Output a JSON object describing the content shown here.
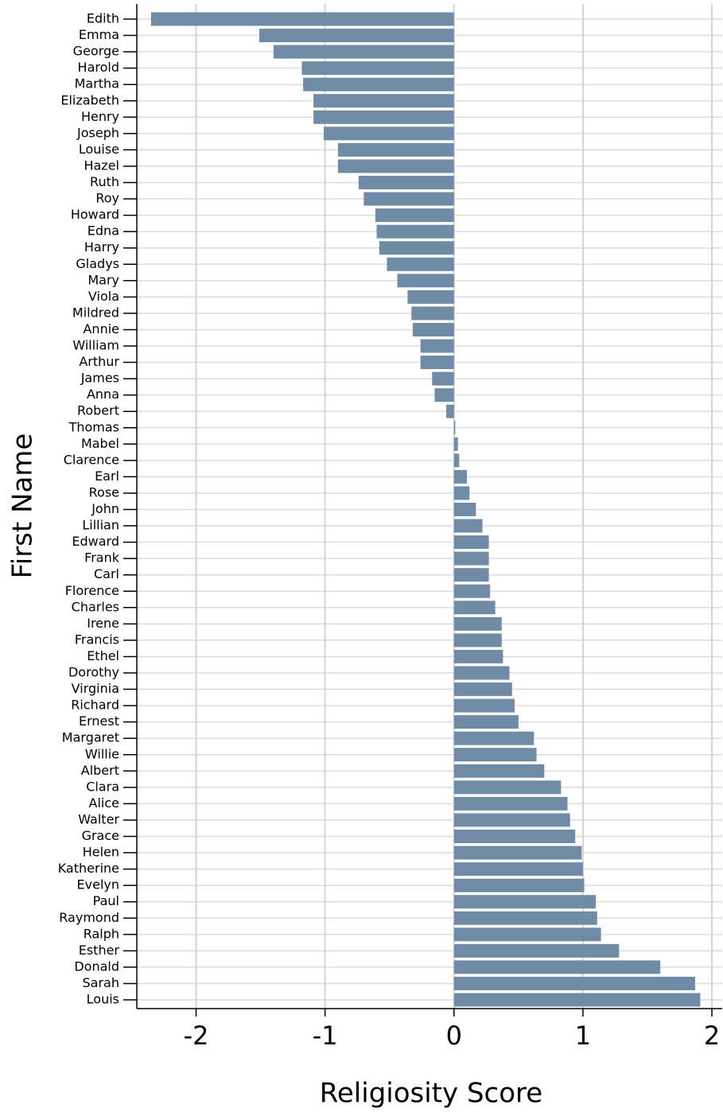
{
  "chart_data": {
    "type": "barh",
    "x_label": "Religiosity Score",
    "y_label": "First Name",
    "categories": [
      "Edith",
      "Emma",
      "George",
      "Harold",
      "Martha",
      "Elizabeth",
      "Henry",
      "Joseph",
      "Louise",
      "Hazel",
      "Ruth",
      "Roy",
      "Howard",
      "Edna",
      "Harry",
      "Gladys",
      "Mary",
      "Viola",
      "Mildred",
      "Annie",
      "William",
      "Arthur",
      "James",
      "Anna",
      "Robert",
      "Thomas",
      "Mabel",
      "Clarence",
      "Earl",
      "Rose",
      "John",
      "Lillian",
      "Edward",
      "Frank",
      "Carl",
      "Florence",
      "Charles",
      "Irene",
      "Francis",
      "Ethel",
      "Dorothy",
      "Virginia",
      "Richard",
      "Ernest",
      "Margaret",
      "Willie",
      "Albert",
      "Clara",
      "Alice",
      "Walter",
      "Grace",
      "Helen",
      "Katherine",
      "Evelyn",
      "Paul",
      "Raymond",
      "Ralph",
      "Esther",
      "Donald",
      "Sarah",
      "Louis"
    ],
    "values": [
      -2.35,
      -1.51,
      -1.4,
      -1.18,
      -1.17,
      -1.09,
      -1.09,
      -1.01,
      -0.9,
      -0.9,
      -0.74,
      -0.7,
      -0.61,
      -0.6,
      -0.58,
      -0.52,
      -0.44,
      -0.36,
      -0.33,
      -0.32,
      -0.26,
      -0.26,
      -0.17,
      -0.15,
      -0.06,
      0.01,
      0.03,
      0.04,
      0.1,
      0.12,
      0.17,
      0.22,
      0.27,
      0.27,
      0.27,
      0.28,
      0.32,
      0.37,
      0.37,
      0.38,
      0.43,
      0.45,
      0.47,
      0.5,
      0.62,
      0.64,
      0.7,
      0.83,
      0.88,
      0.9,
      0.94,
      0.99,
      1.0,
      1.01,
      1.1,
      1.11,
      1.14,
      1.28,
      1.6,
      1.87,
      1.91
    ],
    "color": "#6f8ba6",
    "xlim": [
      -2.46,
      2.08
    ],
    "xticks": [
      -2,
      -1,
      0,
      1,
      2
    ],
    "grid": true
  }
}
